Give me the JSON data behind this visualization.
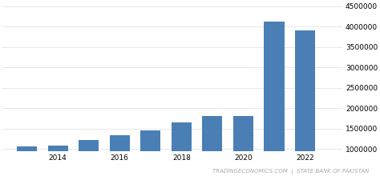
{
  "years": [
    2013,
    2014,
    2015,
    2016,
    2017,
    2018,
    2019,
    2020,
    2021,
    2022
  ],
  "values": [
    1060000,
    1090000,
    1220000,
    1330000,
    1450000,
    1650000,
    1800000,
    1800000,
    4130000,
    3900000
  ],
  "bar_color": "#4a7fb5",
  "background_color": "#ffffff",
  "grid_color": "#dddddd",
  "ylim": [
    950000,
    4600000
  ],
  "yticks": [
    1000000,
    1500000,
    2000000,
    2500000,
    3000000,
    3500000,
    4000000,
    4500000
  ],
  "xtick_labels": [
    "2014",
    "2016",
    "2018",
    "2020",
    "2022"
  ],
  "xtick_positions": [
    2014,
    2016,
    2018,
    2020,
    2022
  ],
  "footer_text": "TRADINGECONOMICS.COM  |  STATE BANK OF PAKISTAN",
  "footer_color": "#aaaaaa",
  "footer_fontsize": 5.0,
  "tick_fontsize": 6.5
}
